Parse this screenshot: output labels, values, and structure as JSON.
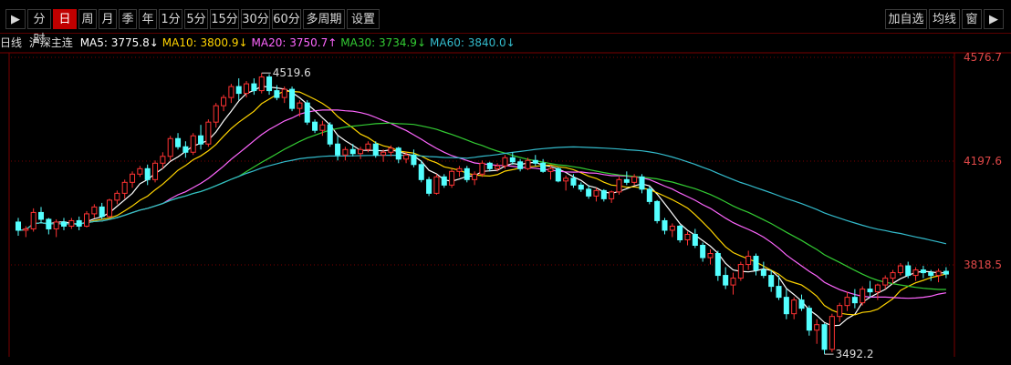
{
  "toolbar": {
    "left_icon": "arrow-right-bar-icon",
    "items": [
      "分时",
      "日",
      "周",
      "月",
      "季",
      "年",
      "1分",
      "5分",
      "15分",
      "30分",
      "60分",
      "多周期",
      "设置"
    ],
    "active_index": 1,
    "right_items": [
      "加自选",
      "均线",
      "窗"
    ],
    "right_icon": "arrow-right-bar-icon"
  },
  "info": {
    "period": "日线",
    "name": "沪深主连",
    "ma": [
      {
        "label": "MA5: 3775.8↓",
        "color": "#ffffff"
      },
      {
        "label": "MA10: 3800.9↓",
        "color": "#ffd400"
      },
      {
        "label": "MA20: 3750.7↑",
        "color": "#ff66ff"
      },
      {
        "label": "MA30: 3734.9↓",
        "color": "#33cc33"
      },
      {
        "label": "MA60: 3840.0↓",
        "color": "#33bbcc"
      }
    ]
  },
  "colors": {
    "up": "#ff3333",
    "down": "#54ffff",
    "grid": "#7a0000",
    "axis_label": "#e04848",
    "background": "#000000"
  },
  "chart_data": {
    "type": "candlestick",
    "y_ticks": [
      4576.7,
      4197.6,
      3818.5
    ],
    "annotations": [
      {
        "label": "4519.6",
        "value": 4519.6,
        "type": "high"
      },
      {
        "label": "3492.2",
        "value": 3492.2,
        "type": "low"
      }
    ],
    "candles": [
      [
        3975,
        3990,
        3925,
        3945
      ],
      [
        3945,
        3960,
        3920,
        3950
      ],
      [
        3950,
        4025,
        3940,
        4010
      ],
      [
        4010,
        4030,
        3970,
        3985
      ],
      [
        3985,
        3990,
        3930,
        3950
      ],
      [
        3950,
        3985,
        3920,
        3975
      ],
      [
        3975,
        3990,
        3945,
        3960
      ],
      [
        3960,
        3990,
        3950,
        3980
      ],
      [
        3980,
        3995,
        3945,
        3960
      ],
      [
        3960,
        4015,
        3955,
        4005
      ],
      [
        4005,
        4040,
        3990,
        4030
      ],
      [
        4030,
        4045,
        3985,
        3995
      ],
      [
        3995,
        4060,
        3990,
        4055
      ],
      [
        4055,
        4090,
        4040,
        4080
      ],
      [
        4080,
        4130,
        4060,
        4120
      ],
      [
        4120,
        4160,
        4100,
        4150
      ],
      [
        4150,
        4180,
        4140,
        4170
      ],
      [
        4170,
        4185,
        4110,
        4130
      ],
      [
        4130,
        4200,
        4120,
        4190
      ],
      [
        4190,
        4230,
        4170,
        4215
      ],
      [
        4215,
        4290,
        4200,
        4280
      ],
      [
        4280,
        4300,
        4240,
        4250
      ],
      [
        4250,
        4270,
        4210,
        4230
      ],
      [
        4230,
        4300,
        4220,
        4290
      ],
      [
        4290,
        4330,
        4240,
        4260
      ],
      [
        4260,
        4350,
        4250,
        4340
      ],
      [
        4340,
        4410,
        4320,
        4400
      ],
      [
        4400,
        4440,
        4380,
        4430
      ],
      [
        4430,
        4480,
        4410,
        4470
      ],
      [
        4470,
        4500,
        4420,
        4445
      ],
      [
        4445,
        4490,
        4430,
        4480
      ],
      [
        4480,
        4500,
        4440,
        4455
      ],
      [
        4455,
        4519.6,
        4445,
        4505
      ],
      [
        4505,
        4515,
        4440,
        4455
      ],
      [
        4455,
        4475,
        4420,
        4430
      ],
      [
        4430,
        4470,
        4410,
        4460
      ],
      [
        4460,
        4470,
        4380,
        4390
      ],
      [
        4390,
        4420,
        4360,
        4410
      ],
      [
        4410,
        4420,
        4330,
        4340
      ],
      [
        4340,
        4350,
        4300,
        4310
      ],
      [
        4310,
        4345,
        4290,
        4330
      ],
      [
        4330,
        4340,
        4250,
        4260
      ],
      [
        4260,
        4290,
        4200,
        4220
      ],
      [
        4220,
        4250,
        4200,
        4240
      ],
      [
        4240,
        4260,
        4215,
        4225
      ],
      [
        4225,
        4250,
        4205,
        4240
      ],
      [
        4240,
        4270,
        4230,
        4260
      ],
      [
        4260,
        4270,
        4210,
        4220
      ],
      [
        4220,
        4240,
        4195,
        4230
      ],
      [
        4230,
        4255,
        4215,
        4245
      ],
      [
        4245,
        4250,
        4190,
        4205
      ],
      [
        4205,
        4230,
        4190,
        4220
      ],
      [
        4220,
        4240,
        4175,
        4185
      ],
      [
        4185,
        4200,
        4120,
        4130
      ],
      [
        4130,
        4140,
        4070,
        4080
      ],
      [
        4080,
        4150,
        4075,
        4140
      ],
      [
        4140,
        4150,
        4100,
        4110
      ],
      [
        4110,
        4170,
        4100,
        4160
      ],
      [
        4160,
        4180,
        4140,
        4170
      ],
      [
        4170,
        4180,
        4120,
        4130
      ],
      [
        4130,
        4160,
        4110,
        4150
      ],
      [
        4150,
        4200,
        4140,
        4190
      ],
      [
        4190,
        4195,
        4160,
        4170
      ],
      [
        4170,
        4190,
        4160,
        4180
      ],
      [
        4180,
        4220,
        4170,
        4210
      ],
      [
        4210,
        4230,
        4185,
        4195
      ],
      [
        4195,
        4205,
        4160,
        4170
      ],
      [
        4170,
        4210,
        4165,
        4200
      ],
      [
        4200,
        4220,
        4180,
        4190
      ],
      [
        4190,
        4205,
        4155,
        4160
      ],
      [
        4160,
        4180,
        4130,
        4170
      ],
      [
        4170,
        4175,
        4120,
        4125
      ],
      [
        4125,
        4145,
        4090,
        4135
      ],
      [
        4135,
        4150,
        4100,
        4110
      ],
      [
        4110,
        4120,
        4085,
        4095
      ],
      [
        4095,
        4110,
        4060,
        4070
      ],
      [
        4070,
        4100,
        4050,
        4090
      ],
      [
        4090,
        4095,
        4050,
        4060
      ],
      [
        4060,
        4090,
        4045,
        4085
      ],
      [
        4085,
        4140,
        4075,
        4130
      ],
      [
        4130,
        4160,
        4110,
        4120
      ],
      [
        4120,
        4150,
        4110,
        4140
      ],
      [
        4140,
        4150,
        4080,
        4095
      ],
      [
        4095,
        4105,
        4040,
        4050
      ],
      [
        4050,
        4055,
        3970,
        3980
      ],
      [
        3980,
        3990,
        3930,
        3945
      ],
      [
        3945,
        3970,
        3920,
        3960
      ],
      [
        3960,
        3965,
        3900,
        3910
      ],
      [
        3910,
        3940,
        3890,
        3930
      ],
      [
        3930,
        3950,
        3880,
        3890
      ],
      [
        3890,
        3900,
        3830,
        3845
      ],
      [
        3845,
        3875,
        3820,
        3860
      ],
      [
        3860,
        3870,
        3760,
        3780
      ],
      [
        3780,
        3810,
        3730,
        3745
      ],
      [
        3745,
        3790,
        3710,
        3770
      ],
      [
        3770,
        3830,
        3760,
        3820
      ],
      [
        3820,
        3870,
        3800,
        3850
      ],
      [
        3850,
        3860,
        3780,
        3800
      ],
      [
        3800,
        3830,
        3770,
        3780
      ],
      [
        3780,
        3800,
        3720,
        3740
      ],
      [
        3740,
        3780,
        3690,
        3700
      ],
      [
        3700,
        3730,
        3620,
        3640
      ],
      [
        3640,
        3700,
        3620,
        3690
      ],
      [
        3690,
        3710,
        3650,
        3660
      ],
      [
        3660,
        3670,
        3560,
        3580
      ],
      [
        3580,
        3620,
        3530,
        3600
      ],
      [
        3600,
        3605,
        3492.2,
        3510
      ],
      [
        3510,
        3640,
        3500,
        3630
      ],
      [
        3630,
        3680,
        3610,
        3670
      ],
      [
        3670,
        3720,
        3650,
        3700
      ],
      [
        3700,
        3730,
        3660,
        3680
      ],
      [
        3680,
        3740,
        3670,
        3730
      ],
      [
        3730,
        3760,
        3700,
        3720
      ],
      [
        3720,
        3750,
        3690,
        3745
      ],
      [
        3745,
        3780,
        3730,
        3770
      ],
      [
        3770,
        3800,
        3750,
        3790
      ],
      [
        3790,
        3825,
        3780,
        3815
      ],
      [
        3815,
        3830,
        3770,
        3780
      ],
      [
        3780,
        3810,
        3760,
        3800
      ],
      [
        3800,
        3815,
        3770,
        3790
      ],
      [
        3790,
        3800,
        3760,
        3780
      ],
      [
        3780,
        3805,
        3755,
        3795
      ],
      [
        3795,
        3810,
        3770,
        3785
      ]
    ],
    "ma_series": [
      {
        "name": "MA5",
        "color": "#ffffff",
        "period": 5
      },
      {
        "name": "MA10",
        "color": "#ffd400",
        "period": 10
      },
      {
        "name": "MA20",
        "color": "#ff66ff",
        "period": 20
      },
      {
        "name": "MA30",
        "color": "#33cc33",
        "period": 30
      },
      {
        "name": "MA60",
        "color": "#33bbcc",
        "period": 60
      }
    ]
  }
}
